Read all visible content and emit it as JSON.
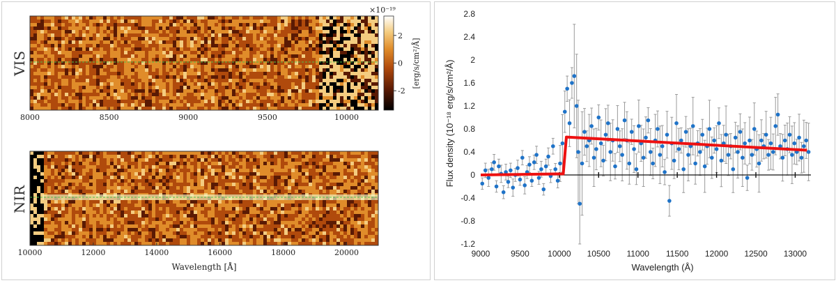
{
  "chart_data": [
    {
      "type": "heatmap",
      "panel": "VIS",
      "row_label": "VIS",
      "x": {
        "min": 8000,
        "max": 10200,
        "ticks": [
          8000,
          8500,
          9000,
          9500,
          10000
        ]
      },
      "colorbar": {
        "label": "[erg/s/cm²/Å]",
        "exponent": "×10⁻¹⁹",
        "min": -3.4,
        "max": 3.4,
        "ticks": [
          2,
          0,
          -2
        ],
        "colors": [
          "#000000",
          "#5a1a04",
          "#b04a0c",
          "#e08c2a",
          "#f4cc80",
          "#ffffff"
        ]
      },
      "trace_color": "#4ec24a"
    },
    {
      "type": "heatmap",
      "panel": "NIR",
      "row_label": "NIR",
      "x": {
        "min": 10000,
        "max": 21000,
        "ticks": [
          10000,
          12000,
          14000,
          16000,
          18000,
          20000
        ]
      },
      "xlabel": "Wavelength [Å]",
      "trace_color": "#4ec24a"
    },
    {
      "type": "scatter",
      "title": "",
      "xlabel": "Wavelength (Å)",
      "ylabel": "Flux density (10⁻¹⁸ erg/s/cm²/Å)",
      "xlim": [
        9000,
        13200
      ],
      "ylim": [
        -1.2,
        2.8
      ],
      "x_ticks": [
        9000,
        9500,
        10000,
        10500,
        11000,
        11500,
        12000,
        12500,
        13000
      ],
      "y_ticks": [
        "2.8",
        "2.4",
        "2",
        "1.6",
        "1.2",
        "0.8",
        "0.4",
        "0",
        "-0.4",
        "-0.8",
        "-1.2"
      ],
      "points": [
        [
          9020,
          -0.15
        ],
        [
          9060,
          0.08
        ],
        [
          9100,
          -0.05
        ],
        [
          9140,
          0.1
        ],
        [
          9170,
          0.22
        ],
        [
          9200,
          -0.2
        ],
        [
          9230,
          0.15
        ],
        [
          9260,
          0.02
        ],
        [
          9290,
          -0.3
        ],
        [
          9320,
          0.05
        ],
        [
          9350,
          -0.12
        ],
        [
          9380,
          0.08
        ],
        [
          9410,
          -0.22
        ],
        [
          9440,
          0.0
        ],
        [
          9470,
          0.12
        ],
        [
          9500,
          -0.08
        ],
        [
          9530,
          0.3
        ],
        [
          9560,
          -0.18
        ],
        [
          9590,
          0.05
        ],
        [
          9620,
          0.18
        ],
        [
          9650,
          -0.1
        ],
        [
          9680,
          0.22
        ],
        [
          9710,
          0.35
        ],
        [
          9740,
          -0.05
        ],
        [
          9770,
          0.1
        ],
        [
          9800,
          -0.25
        ],
        [
          9830,
          0.15
        ],
        [
          9860,
          0.32
        ],
        [
          9890,
          -0.02
        ],
        [
          9920,
          0.5
        ],
        [
          9950,
          0.1
        ],
        [
          9980,
          -0.1
        ],
        [
          10010,
          0.2
        ],
        [
          10040,
          0.55
        ],
        [
          10070,
          1.1
        ],
        [
          10100,
          1.5
        ],
        [
          10130,
          0.9
        ],
        [
          10160,
          1.6
        ],
        [
          10190,
          1.72
        ],
        [
          10220,
          1.2
        ],
        [
          10240,
          0.4
        ],
        [
          10260,
          -0.5
        ],
        [
          10290,
          0.2
        ],
        [
          10320,
          0.75
        ],
        [
          10350,
          0.5
        ],
        [
          10380,
          0.6
        ],
        [
          10410,
          0.85
        ],
        [
          10440,
          0.3
        ],
        [
          10470,
          0.45
        ],
        [
          10500,
          1.0
        ],
        [
          10530,
          0.55
        ],
        [
          10560,
          0.25
        ],
        [
          10590,
          0.7
        ],
        [
          10620,
          0.9
        ],
        [
          10650,
          0.4
        ],
        [
          10680,
          0.6
        ],
        [
          10710,
          0.15
        ],
        [
          10740,
          0.8
        ],
        [
          10770,
          0.5
        ],
        [
          10800,
          0.35
        ],
        [
          10830,
          0.95
        ],
        [
          10860,
          0.6
        ],
        [
          10890,
          0.2
        ],
        [
          10920,
          0.75
        ],
        [
          10950,
          0.45
        ],
        [
          10980,
          0.1
        ],
        [
          11010,
          0.85
        ],
        [
          11040,
          0.55
        ],
        [
          11070,
          0.3
        ],
        [
          11100,
          0.65
        ],
        [
          11130,
          0.95
        ],
        [
          11160,
          0.4
        ],
        [
          11190,
          0.2
        ],
        [
          11220,
          0.6
        ],
        [
          11250,
          0.8
        ],
        [
          11280,
          0.35
        ],
        [
          11310,
          0.5
        ],
        [
          11340,
          0.05
        ],
        [
          11370,
          0.7
        ],
        [
          11400,
          -0.45
        ],
        [
          11430,
          0.55
        ],
        [
          11460,
          0.25
        ],
        [
          11490,
          0.9
        ],
        [
          11520,
          0.45
        ],
        [
          11550,
          0.6
        ],
        [
          11580,
          0.1
        ],
        [
          11610,
          0.75
        ],
        [
          11640,
          0.35
        ],
        [
          11670,
          0.5
        ],
        [
          11700,
          0.85
        ],
        [
          11730,
          0.2
        ],
        [
          11760,
          0.55
        ],
        [
          11790,
          0.4
        ],
        [
          11820,
          0.7
        ],
        [
          11850,
          0.15
        ],
        [
          11880,
          0.5
        ],
        [
          11910,
          0.8
        ],
        [
          11940,
          0.3
        ],
        [
          11970,
          0.6
        ],
        [
          12000,
          0.45
        ],
        [
          12030,
          0.9
        ],
        [
          12060,
          0.25
        ],
        [
          12090,
          0.55
        ],
        [
          12120,
          0.7
        ],
        [
          12150,
          0.35
        ],
        [
          12180,
          0.5
        ],
        [
          12210,
          0.1
        ],
        [
          12240,
          0.65
        ],
        [
          12270,
          0.4
        ],
        [
          12300,
          0.75
        ],
        [
          12330,
          0.3
        ],
        [
          12360,
          0.55
        ],
        [
          12390,
          -0.05
        ],
        [
          12420,
          0.6
        ],
        [
          12450,
          0.35
        ],
        [
          12480,
          0.8
        ],
        [
          12510,
          0.45
        ],
        [
          12540,
          0.2
        ],
        [
          12570,
          0.6
        ],
        [
          12600,
          0.5
        ],
        [
          12630,
          0.7
        ],
        [
          12660,
          0.35
        ],
        [
          12690,
          0.55
        ],
        [
          12720,
          0.4
        ],
        [
          12750,
          0.85
        ],
        [
          12780,
          1.05
        ],
        [
          12810,
          0.5
        ],
        [
          12840,
          0.3
        ],
        [
          12870,
          0.6
        ],
        [
          12900,
          0.45
        ],
        [
          12930,
          0.7
        ],
        [
          12960,
          0.35
        ],
        [
          12990,
          0.55
        ],
        [
          13020,
          0.4
        ],
        [
          13050,
          0.65
        ],
        [
          13080,
          0.3
        ],
        [
          13110,
          0.5
        ],
        [
          13140,
          0.6
        ],
        [
          13170,
          0.4
        ]
      ],
      "point_color": "#1f73c8",
      "errorbar_color": "#9a9a9a",
      "model": {
        "name": "model",
        "color": "#ee1111",
        "points": [
          [
            9000,
            0.0
          ],
          [
            10050,
            0.02
          ],
          [
            10090,
            0.66
          ],
          [
            13150,
            0.43
          ]
        ]
      },
      "zero_line": 0,
      "tick_marks_on_zero": [
        10000,
        10500,
        11000,
        11500,
        12000,
        12500,
        13000
      ]
    }
  ]
}
